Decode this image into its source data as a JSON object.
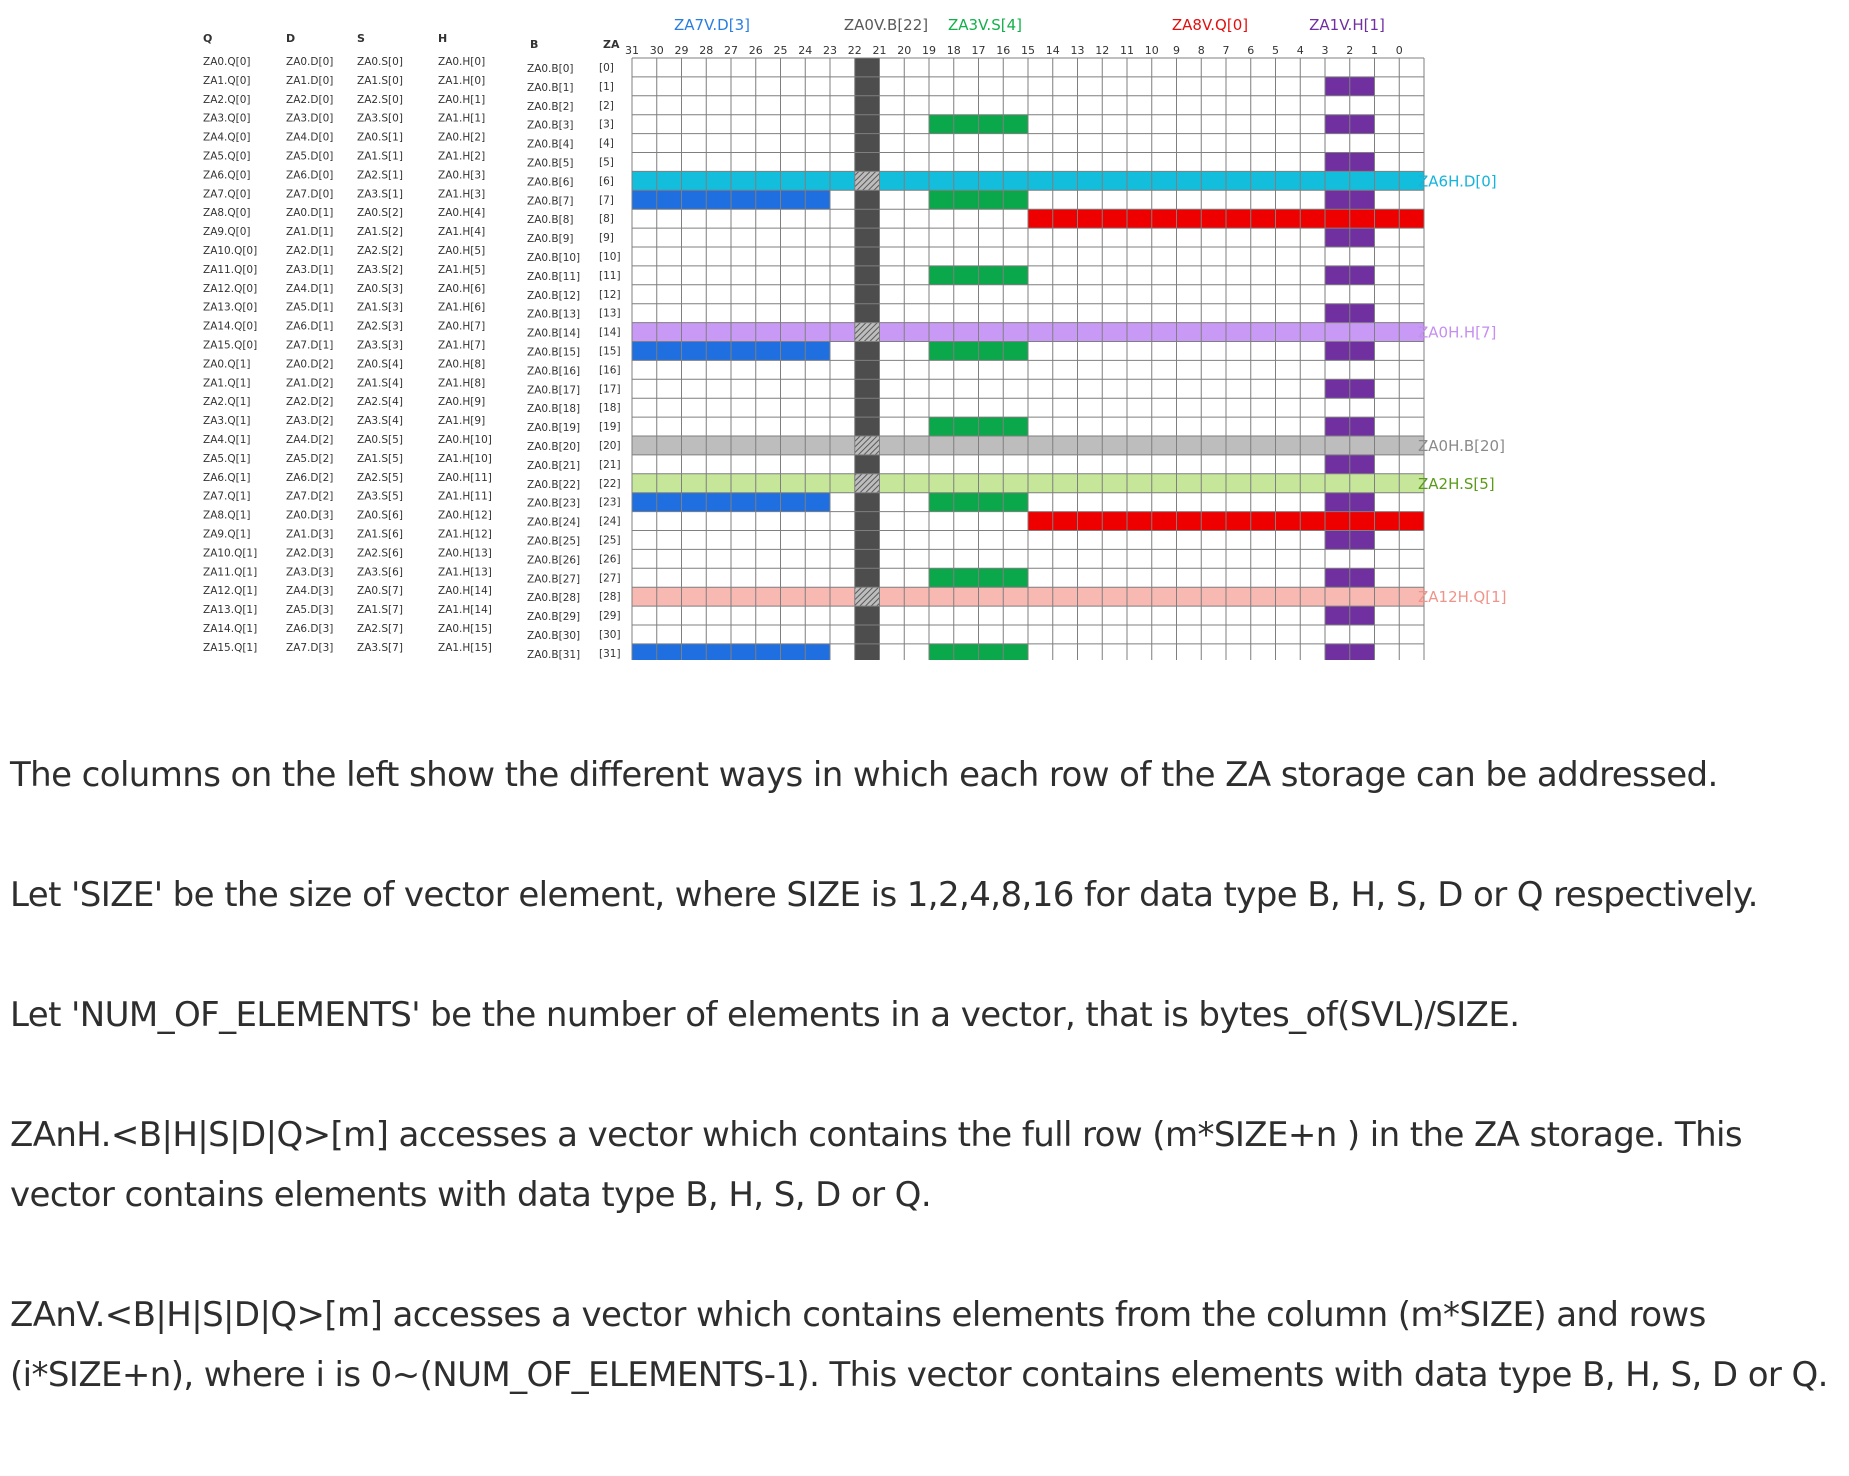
{
  "diagram": {
    "column_headers": [
      "Q",
      "D",
      "S",
      "H",
      "B",
      "ZA"
    ],
    "bit_labels": [
      "31",
      "30",
      "29",
      "28",
      "27",
      "26",
      "25",
      "24",
      "23",
      "22",
      "21",
      "20",
      "19",
      "18",
      "17",
      "16",
      "15",
      "14",
      "13",
      "12",
      "11",
      "10",
      "9",
      "8",
      "7",
      "6",
      "5",
      "4",
      "3",
      "2",
      "1",
      "0"
    ],
    "rows": [
      {
        "q": "ZA0.Q[0]",
        "d": "ZA0.D[0]",
        "s": "ZA0.S[0]",
        "h": "ZA0.H[0]",
        "b": "ZA0.B[0]",
        "za": "[0]"
      },
      {
        "q": "ZA1.Q[0]",
        "d": "ZA1.D[0]",
        "s": "ZA1.S[0]",
        "h": "ZA1.H[0]",
        "b": "ZA0.B[1]",
        "za": "[1]"
      },
      {
        "q": "ZA2.Q[0]",
        "d": "ZA2.D[0]",
        "s": "ZA2.S[0]",
        "h": "ZA0.H[1]",
        "b": "ZA0.B[2]",
        "za": "[2]"
      },
      {
        "q": "ZA3.Q[0]",
        "d": "ZA3.D[0]",
        "s": "ZA3.S[0]",
        "h": "ZA1.H[1]",
        "b": "ZA0.B[3]",
        "za": "[3]"
      },
      {
        "q": "ZA4.Q[0]",
        "d": "ZA4.D[0]",
        "s": "ZA0.S[1]",
        "h": "ZA0.H[2]",
        "b": "ZA0.B[4]",
        "za": "[4]"
      },
      {
        "q": "ZA5.Q[0]",
        "d": "ZA5.D[0]",
        "s": "ZA1.S[1]",
        "h": "ZA1.H[2]",
        "b": "ZA0.B[5]",
        "za": "[5]"
      },
      {
        "q": "ZA6.Q[0]",
        "d": "ZA6.D[0]",
        "s": "ZA2.S[1]",
        "h": "ZA0.H[3]",
        "b": "ZA0.B[6]",
        "za": "[6]"
      },
      {
        "q": "ZA7.Q[0]",
        "d": "ZA7.D[0]",
        "s": "ZA3.S[1]",
        "h": "ZA1.H[3]",
        "b": "ZA0.B[7]",
        "za": "[7]"
      },
      {
        "q": "ZA8.Q[0]",
        "d": "ZA0.D[1]",
        "s": "ZA0.S[2]",
        "h": "ZA0.H[4]",
        "b": "ZA0.B[8]",
        "za": "[8]"
      },
      {
        "q": "ZA9.Q[0]",
        "d": "ZA1.D[1]",
        "s": "ZA1.S[2]",
        "h": "ZA1.H[4]",
        "b": "ZA0.B[9]",
        "za": "[9]"
      },
      {
        "q": "ZA10.Q[0]",
        "d": "ZA2.D[1]",
        "s": "ZA2.S[2]",
        "h": "ZA0.H[5]",
        "b": "ZA0.B[10]",
        "za": "[10]"
      },
      {
        "q": "ZA11.Q[0]",
        "d": "ZA3.D[1]",
        "s": "ZA3.S[2]",
        "h": "ZA1.H[5]",
        "b": "ZA0.B[11]",
        "za": "[11]"
      },
      {
        "q": "ZA12.Q[0]",
        "d": "ZA4.D[1]",
        "s": "ZA0.S[3]",
        "h": "ZA0.H[6]",
        "b": "ZA0.B[12]",
        "za": "[12]"
      },
      {
        "q": "ZA13.Q[0]",
        "d": "ZA5.D[1]",
        "s": "ZA1.S[3]",
        "h": "ZA1.H[6]",
        "b": "ZA0.B[13]",
        "za": "[13]"
      },
      {
        "q": "ZA14.Q[0]",
        "d": "ZA6.D[1]",
        "s": "ZA2.S[3]",
        "h": "ZA0.H[7]",
        "b": "ZA0.B[14]",
        "za": "[14]"
      },
      {
        "q": "ZA15.Q[0]",
        "d": "ZA7.D[1]",
        "s": "ZA3.S[3]",
        "h": "ZA1.H[7]",
        "b": "ZA0.B[15]",
        "za": "[15]"
      },
      {
        "q": "ZA0.Q[1]",
        "d": "ZA0.D[2]",
        "s": "ZA0.S[4]",
        "h": "ZA0.H[8]",
        "b": "ZA0.B[16]",
        "za": "[16]"
      },
      {
        "q": "ZA1.Q[1]",
        "d": "ZA1.D[2]",
        "s": "ZA1.S[4]",
        "h": "ZA1.H[8]",
        "b": "ZA0.B[17]",
        "za": "[17]"
      },
      {
        "q": "ZA2.Q[1]",
        "d": "ZA2.D[2]",
        "s": "ZA2.S[4]",
        "h": "ZA0.H[9]",
        "b": "ZA0.B[18]",
        "za": "[18]"
      },
      {
        "q": "ZA3.Q[1]",
        "d": "ZA3.D[2]",
        "s": "ZA3.S[4]",
        "h": "ZA1.H[9]",
        "b": "ZA0.B[19]",
        "za": "[19]"
      },
      {
        "q": "ZA4.Q[1]",
        "d": "ZA4.D[2]",
        "s": "ZA0.S[5]",
        "h": "ZA0.H[10]",
        "b": "ZA0.B[20]",
        "za": "[20]"
      },
      {
        "q": "ZA5.Q[1]",
        "d": "ZA5.D[2]",
        "s": "ZA1.S[5]",
        "h": "ZA1.H[10]",
        "b": "ZA0.B[21]",
        "za": "[21]"
      },
      {
        "q": "ZA6.Q[1]",
        "d": "ZA6.D[2]",
        "s": "ZA2.S[5]",
        "h": "ZA0.H[11]",
        "b": "ZA0.B[22]",
        "za": "[22]"
      },
      {
        "q": "ZA7.Q[1]",
        "d": "ZA7.D[2]",
        "s": "ZA3.S[5]",
        "h": "ZA1.H[11]",
        "b": "ZA0.B[23]",
        "za": "[23]"
      },
      {
        "q": "ZA8.Q[1]",
        "d": "ZA0.D[3]",
        "s": "ZA0.S[6]",
        "h": "ZA0.H[12]",
        "b": "ZA0.B[24]",
        "za": "[24]"
      },
      {
        "q": "ZA9.Q[1]",
        "d": "ZA1.D[3]",
        "s": "ZA1.S[6]",
        "h": "ZA1.H[12]",
        "b": "ZA0.B[25]",
        "za": "[25]"
      },
      {
        "q": "ZA10.Q[1]",
        "d": "ZA2.D[3]",
        "s": "ZA2.S[6]",
        "h": "ZA0.H[13]",
        "b": "ZA0.B[26]",
        "za": "[26]"
      },
      {
        "q": "ZA11.Q[1]",
        "d": "ZA3.D[3]",
        "s": "ZA3.S[6]",
        "h": "ZA1.H[13]",
        "b": "ZA0.B[27]",
        "za": "[27]"
      },
      {
        "q": "ZA12.Q[1]",
        "d": "ZA4.D[3]",
        "s": "ZA0.S[7]",
        "h": "ZA0.H[14]",
        "b": "ZA0.B[28]",
        "za": "[28]"
      },
      {
        "q": "ZA13.Q[1]",
        "d": "ZA5.D[3]",
        "s": "ZA1.S[7]",
        "h": "ZA1.H[14]",
        "b": "ZA0.B[29]",
        "za": "[29]"
      },
      {
        "q": "ZA14.Q[1]",
        "d": "ZA6.D[3]",
        "s": "ZA2.S[7]",
        "h": "ZA0.H[15]",
        "b": "ZA0.B[30]",
        "za": "[30]"
      },
      {
        "q": "ZA15.Q[1]",
        "d": "ZA7.D[3]",
        "s": "ZA3.S[7]",
        "h": "ZA1.H[15]",
        "b": "ZA0.B[31]",
        "za": "[31]"
      }
    ],
    "vertical_vectors": [
      {
        "label": "ZA7V.D[3]",
        "color": "#1f6fe0",
        "label_color": "#2a7de1",
        "bits": [
          31,
          24
        ],
        "start_row": 7,
        "step": 8
      },
      {
        "label": "ZA0V.B[22]",
        "color": "#4d4d4d",
        "label_color": "#595959",
        "bits": [
          22,
          22
        ],
        "start_row": 0,
        "step": 1
      },
      {
        "label": "ZA3V.S[4]",
        "color": "#0aa84a",
        "label_color": "#12b04a",
        "bits": [
          19,
          16
        ],
        "start_row": 3,
        "step": 4
      },
      {
        "label": "ZA8V.Q[0]",
        "color": "#ee0000",
        "label_color": "#e01010",
        "bits": [
          15,
          0
        ],
        "start_row": 8,
        "step": 16
      },
      {
        "label": "ZA1V.H[1]",
        "color": "#7030a0",
        "label_color": "#7030a0",
        "bits": [
          3,
          2
        ],
        "start_row": 1,
        "step": 2
      }
    ],
    "horizontal_vectors": [
      {
        "label": "ZA6H.D[0]",
        "color": "#12bedc",
        "label_color": "#14b4dc",
        "row": 6
      },
      {
        "label": "ZA0H.H[7]",
        "color": "#c89af5",
        "label_color": "#c58ef0",
        "row": 14
      },
      {
        "label": "ZA0H.B[20]",
        "color": "#bdbdbd",
        "label_color": "#8a8a8a",
        "row": 20
      },
      {
        "label": "ZA2H.S[5]",
        "color": "#c6e79a",
        "label_color": "#5a9b1a",
        "row": 22
      },
      {
        "label": "ZA12H.Q[1]",
        "color": "#f8b9b3",
        "label_color": "#f0948a",
        "row": 28
      }
    ]
  },
  "text": {
    "p1": "The columns on the left show the different ways in which each row of the ZA storage can be addressed.",
    "p2": "Let 'SIZE' be the size of vector element, where SIZE is 1,2,4,8,16 for data type B, H, S, D or Q respectively.",
    "p3": "Let 'NUM_OF_ELEMENTS' be the number of elements in a vector, that is bytes_of(SVL)/SIZE.",
    "p4": "ZAnH.<B|H|S|D|Q>[m] accesses a vector which contains the full row (m*SIZE+n ) in the ZA storage. This vector contains elements with data type B, H, S, D or Q.",
    "p5": "ZAnV.<B|H|S|D|Q>[m] accesses a vector which contains elements from the column (m*SIZE) and rows (i*SIZE+n), where i is 0~(NUM_OF_ELEMENTS-1). This vector contains elements with data type B, H, S, D or Q."
  }
}
